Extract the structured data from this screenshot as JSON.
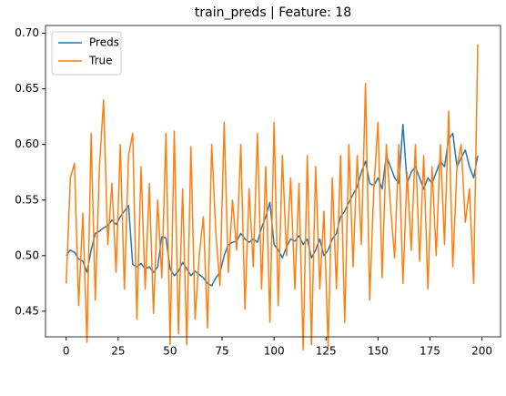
{
  "chart_data": {
    "type": "line",
    "title": "train_preds | Feature: 18",
    "x": [
      0,
      2,
      4,
      6,
      8,
      10,
      12,
      14,
      16,
      18,
      20,
      22,
      24,
      26,
      28,
      30,
      32,
      34,
      36,
      38,
      40,
      42,
      44,
      46,
      48,
      50,
      52,
      54,
      56,
      58,
      60,
      62,
      64,
      66,
      68,
      70,
      72,
      74,
      76,
      78,
      80,
      82,
      84,
      86,
      88,
      90,
      92,
      94,
      96,
      98,
      100,
      102,
      104,
      106,
      108,
      110,
      112,
      114,
      116,
      118,
      120,
      122,
      124,
      126,
      128,
      130,
      132,
      134,
      136,
      138,
      140,
      142,
      144,
      146,
      148,
      150,
      152,
      154,
      156,
      158,
      160,
      162,
      164,
      166,
      168,
      170,
      172,
      174,
      176,
      178,
      180,
      182,
      184,
      186,
      188,
      190,
      192,
      194,
      196,
      198
    ],
    "series": [
      {
        "name": "Preds",
        "color": "#1f77b4",
        "values": [
          0.5,
          0.505,
          0.503,
          0.497,
          0.495,
          0.485,
          0.505,
          0.52,
          0.522,
          0.525,
          0.527,
          0.532,
          0.528,
          0.535,
          0.54,
          0.545,
          0.492,
          0.49,
          0.493,
          0.488,
          0.49,
          0.485,
          0.49,
          0.517,
          0.516,
          0.488,
          0.482,
          0.486,
          0.494,
          0.488,
          0.482,
          0.486,
          0.483,
          0.48,
          0.475,
          0.473,
          0.48,
          0.485,
          0.5,
          0.51,
          0.512,
          0.513,
          0.52,
          0.515,
          0.512,
          0.515,
          0.512,
          0.525,
          0.535,
          0.548,
          0.51,
          0.505,
          0.498,
          0.508,
          0.515,
          0.513,
          0.518,
          0.51,
          0.515,
          0.498,
          0.505,
          0.515,
          0.5,
          0.505,
          0.515,
          0.52,
          0.535,
          0.54,
          0.548,
          0.555,
          0.562,
          0.575,
          0.585,
          0.565,
          0.563,
          0.57,
          0.56,
          0.59,
          0.58,
          0.57,
          0.565,
          0.618,
          0.565,
          0.575,
          0.58,
          0.57,
          0.56,
          0.57,
          0.565,
          0.575,
          0.585,
          0.58,
          0.605,
          0.61,
          0.58,
          0.588,
          0.595,
          0.58,
          0.57,
          0.59
        ]
      },
      {
        "name": "True",
        "color": "#ff7f0e",
        "values": [
          0.475,
          0.57,
          0.583,
          0.455,
          0.538,
          0.422,
          0.61,
          0.46,
          0.58,
          0.64,
          0.51,
          0.565,
          0.485,
          0.6,
          0.47,
          0.59,
          0.61,
          0.443,
          0.58,
          0.47,
          0.565,
          0.448,
          0.55,
          0.48,
          0.61,
          0.42,
          0.612,
          0.43,
          0.56,
          0.42,
          0.598,
          0.443,
          0.5,
          0.535,
          0.435,
          0.6,
          0.52,
          0.473,
          0.62,
          0.485,
          0.55,
          0.505,
          0.6,
          0.452,
          0.56,
          0.49,
          0.61,
          0.47,
          0.58,
          0.44,
          0.62,
          0.455,
          0.59,
          0.5,
          0.57,
          0.47,
          0.565,
          0.415,
          0.59,
          0.42,
          0.58,
          0.47,
          0.54,
          0.418,
          0.57,
          0.47,
          0.59,
          0.44,
          0.6,
          0.49,
          0.59,
          0.51,
          0.655,
          0.46,
          0.56,
          0.62,
          0.48,
          0.6,
          0.545,
          0.498,
          0.6,
          0.475,
          0.575,
          0.505,
          0.6,
          0.495,
          0.59,
          0.47,
          0.58,
          0.5,
          0.6,
          0.51,
          0.63,
          0.49,
          0.58,
          0.6,
          0.53,
          0.56,
          0.475,
          0.69
        ]
      }
    ],
    "xlim": [
      -9.95,
      208.95
    ],
    "ylim": [
      0.427,
      0.707
    ],
    "xticks": [
      0,
      25,
      50,
      75,
      100,
      125,
      150,
      175,
      200
    ],
    "yticks": [
      0.45,
      {
        "value": 0.5,
        "label": "0.50"
      },
      0.55,
      {
        "value": 0.6,
        "label": "0.60"
      },
      0.65,
      {
        "value": 0.7,
        "label": "0.70"
      }
    ],
    "legend": "upper left"
  }
}
